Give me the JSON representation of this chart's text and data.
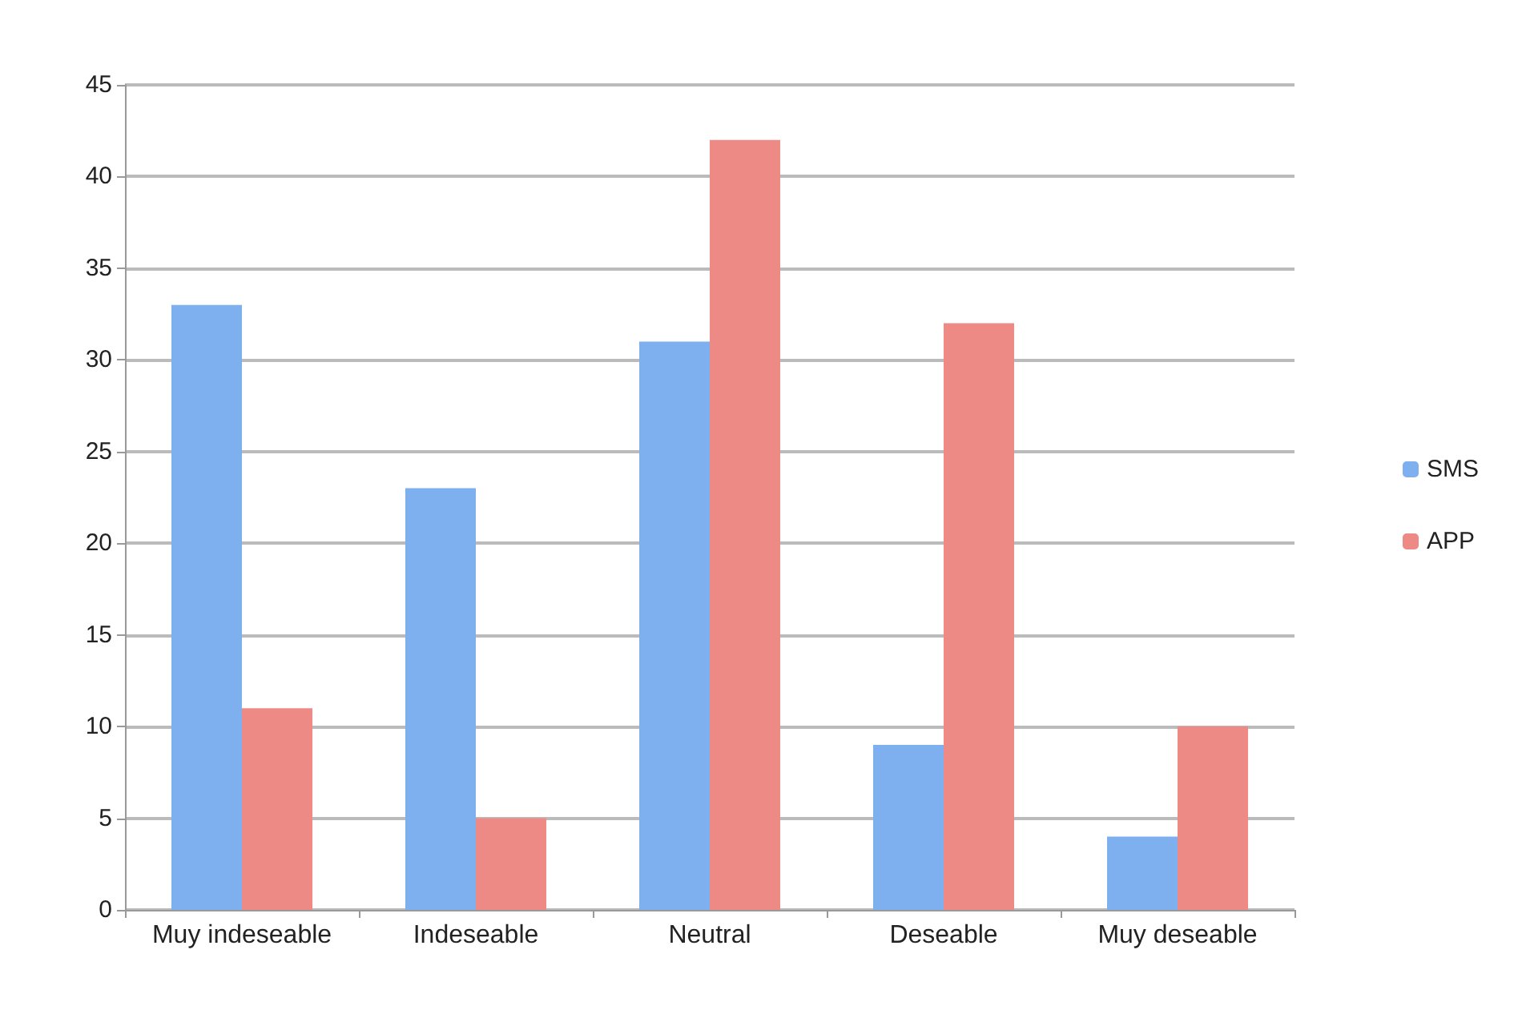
{
  "chart_data": {
    "type": "bar",
    "categories": [
      "Muy indeseable",
      "Indeseable",
      "Neutral",
      "Deseable",
      "Muy deseable"
    ],
    "series": [
      {
        "name": "SMS",
        "color": "#7eb0f0",
        "values": [
          33,
          23,
          31,
          9,
          4
        ]
      },
      {
        "name": "APP",
        "color": "#ee8a86",
        "values": [
          11,
          5,
          42,
          32,
          10
        ]
      }
    ],
    "ylim": [
      0,
      45
    ],
    "yticks": [
      0,
      5,
      10,
      15,
      20,
      25,
      30,
      35,
      40,
      45
    ],
    "grid": "y",
    "legend": "right"
  }
}
